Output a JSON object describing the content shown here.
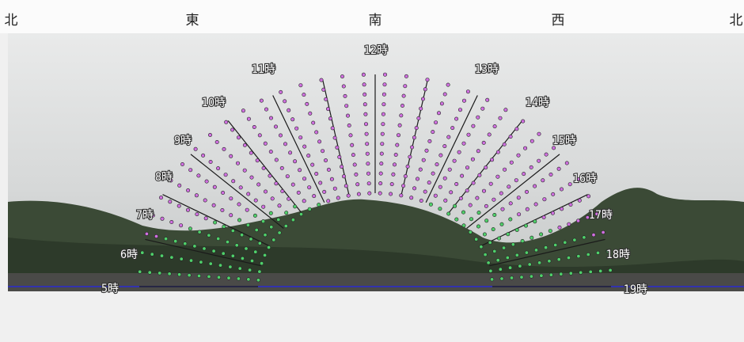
{
  "compass": [
    "北",
    "東",
    "南",
    "西",
    "北"
  ],
  "hour_labels": [
    "5時",
    "6時",
    "7時",
    "8時",
    "9時",
    "10時",
    "11時",
    "12時",
    "13時",
    "14時",
    "15時",
    "16時",
    "17時",
    "18時",
    "19時"
  ]
}
